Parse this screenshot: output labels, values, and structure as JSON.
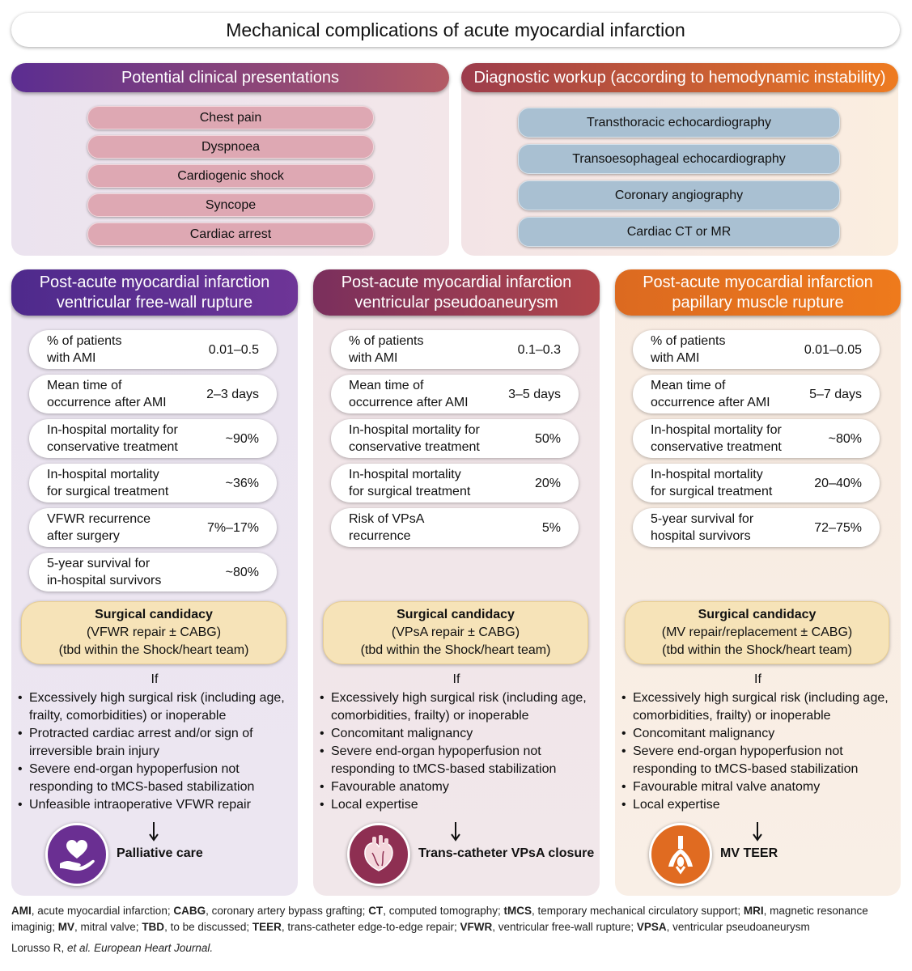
{
  "title": "Mechanical complications of acute myocardial infarction",
  "presentations": {
    "heading": "Potential clinical presentations",
    "items": [
      "Chest pain",
      "Dyspnoea",
      "Cardiogenic shock",
      "Syncope",
      "Cardiac arrest"
    ]
  },
  "workup": {
    "heading": "Diagnostic workup (according to hemodynamic instability)",
    "items": [
      "Transthoracic echocardiography",
      "Transoesophageal echocardiography",
      "Coronary angiography",
      "Cardiac CT or MR"
    ]
  },
  "columns": [
    {
      "heading": "Post-acute myocardial infarction\nventricular free-wall rupture",
      "stats": [
        {
          "label": "% of patients\nwith AMI",
          "value": "0.01–0.5"
        },
        {
          "label": "Mean time of\noccurrence after AMI",
          "value": "2–3 days"
        },
        {
          "label": "In-hospital mortality for\nconservative treatment",
          "value": "~90%"
        },
        {
          "label": "In-hospital mortality\nfor surgical treatment",
          "value": "~36%"
        },
        {
          "label": "VFWR recurrence\nafter surgery",
          "value": "7%–17%"
        },
        {
          "label": "5-year survival for\nin-hospital survivors",
          "value": "~80%"
        }
      ],
      "candidacy": {
        "title": "Surgical candidacy",
        "line1": "(VFWR repair ± CABG)",
        "line2": "(tbd within the Shock/heart team)"
      },
      "if_label": "If",
      "criteria": [
        "Excessively high surgical risk (including age,\nfrailty, comorbidities) or inoperable",
        "Protracted cardiac arrest and/or sign of\nirreversible brain injury",
        "Severe end-organ hypoperfusion not\nresponding to tMCS-based stabilization",
        "Unfeasible intraoperative VFWR repair"
      ],
      "outcome": "Palliative care",
      "icon": "palliative-care-icon"
    },
    {
      "heading": "Post-acute myocardial infarction\nventricular pseudoaneurysm",
      "stats": [
        {
          "label": "% of patients\nwith AMI",
          "value": "0.1–0.3"
        },
        {
          "label": "Mean time of\noccurrence after AMI",
          "value": "3–5 days"
        },
        {
          "label": "In-hospital mortality for\nconservative treatment",
          "value": "50%"
        },
        {
          "label": "In-hospital mortality\nfor surgical treatment",
          "value": "20%"
        },
        {
          "label": "Risk of VPsA\nrecurrence",
          "value": "5%"
        }
      ],
      "candidacy": {
        "title": "Surgical candidacy",
        "line1": "(VPsA repair ± CABG)",
        "line2": "(tbd within the Shock/heart team)"
      },
      "if_label": "If",
      "criteria": [
        "Excessively high surgical risk (including age,\ncomorbidities, frailty) or inoperable",
        "Concomitant malignancy",
        "Severe end-organ hypoperfusion not\nresponding to tMCS-based stabilization",
        "Favourable anatomy",
        "Local expertise"
      ],
      "outcome": "Trans-catheter VPsA closure",
      "icon": "heart-anatomy-icon"
    },
    {
      "heading": "Post-acute myocardial infarction\npapillary muscle rupture",
      "stats": [
        {
          "label": "% of patients\nwith AMI",
          "value": "0.01–0.05"
        },
        {
          "label": "Mean time of\noccurrence after AMI",
          "value": "5–7 days"
        },
        {
          "label": "In-hospital mortality for\nconservative treatment",
          "value": "~80%"
        },
        {
          "label": "In-hospital mortality\nfor surgical treatment",
          "value": "20–40%"
        },
        {
          "label": "5-year survival for\nhospital survivors",
          "value": "72–75%"
        }
      ],
      "candidacy": {
        "title": "Surgical candidacy",
        "line1": "(MV repair/replacement ± CABG)",
        "line2": "(tbd within the Shock/heart team)"
      },
      "if_label": "If",
      "criteria": [
        "Excessively high surgical risk (including age,\ncomorbidities, frailty) or inoperable",
        "Concomitant malignancy",
        "Severe end-organ hypoperfusion not\nresponding to tMCS-based stabilization",
        "Favourable mitral valve anatomy",
        "Local expertise"
      ],
      "outcome": "MV TEER",
      "icon": "mitral-clip-icon"
    }
  ],
  "footnote": [
    {
      "abbr": "AMI",
      "text": ", acute myocardial infarction; "
    },
    {
      "abbr": "CABG",
      "text": ", coronary artery bypass grafting; "
    },
    {
      "abbr": "CT",
      "text": ", computed tomography; "
    },
    {
      "abbr": "tMCS",
      "text": ", temporary mechanical circulatory support; "
    },
    {
      "abbr": "MRI",
      "text": ", magnetic resonance imaginig; "
    },
    {
      "abbr": "MV",
      "text": ", mitral valve; "
    },
    {
      "abbr": "TBD",
      "text": ", to be discussed; "
    },
    {
      "abbr": "TEER",
      "text": ", trans-catheter edge-to-edge repair; "
    },
    {
      "abbr": "VFWR",
      "text": ", ventricular free-wall rupture; "
    },
    {
      "abbr": "VPSA",
      "text": ", ventricular pseudoaneurysm"
    }
  ],
  "citation": {
    "authors": "Lorusso R, ",
    "etal": "et al.",
    "journal": " European Heart Journal."
  },
  "colors": {
    "purple": "#5b2d91",
    "maroon": "#8f3050",
    "orange": "#e8761e",
    "pink_pill": "#dea8b3",
    "blue_pill": "#a9c0d2",
    "candidacy": "#f6e3b8"
  }
}
